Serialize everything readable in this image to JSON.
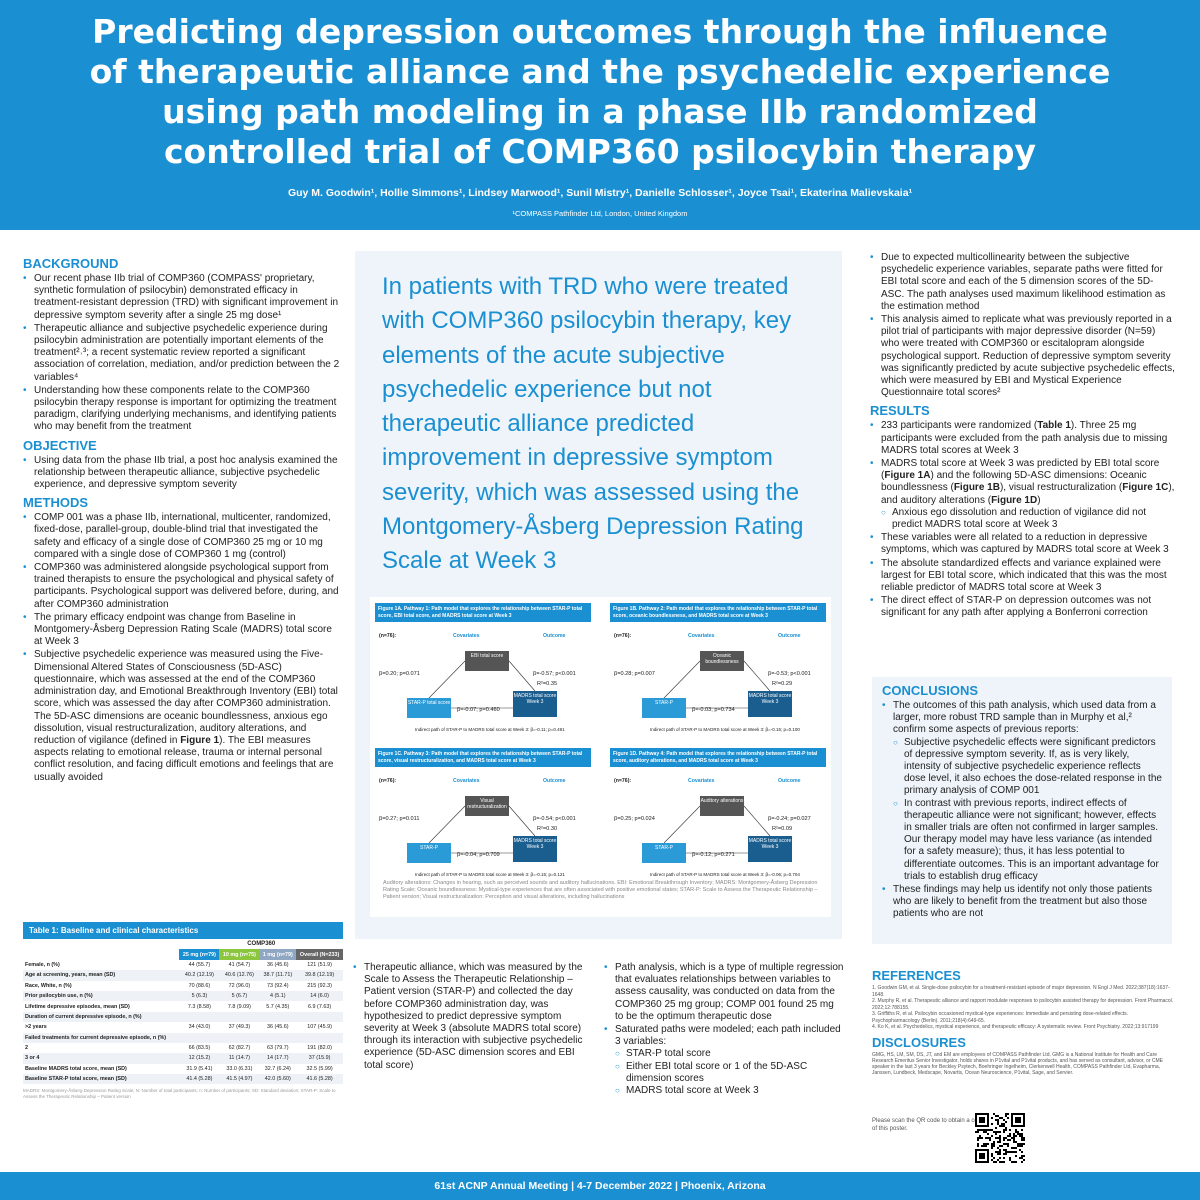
{
  "header": {
    "title_lines": [
      "Predicting depression outcomes through the influence",
      "of therapeutic alliance and the psychedelic experience",
      "using path modeling in a phase IIb randomized",
      "controlled trial of COMP360 psilocybin therapy"
    ],
    "authors": "Guy M. Goodwin¹, Hollie Simmons¹, Lindsey Marwood¹, Sunil Mistry¹, Danielle Schlosser¹, Joyce Tsai¹, Ekaterina Malievskaia¹",
    "affiliation": "¹COMPASS Pathfinder Ltd, London, United Kingdom"
  },
  "background": {
    "heading": "BACKGROUND",
    "items": [
      "Our recent phase IIb trial of COMP360 (COMPASS' proprietary, synthetic formulation of psilocybin) demonstrated efficacy in treatment-resistant depression (TRD) with significant improvement in depressive symptom severity after a single 25 mg dose¹",
      "Therapeutic alliance and subjective psychedelic experience during psilocybin administration are potentially important elements of the treatment²˒³; a recent systematic review reported a significant association of correlation, mediation, and/or prediction between the 2 variables⁴",
      "Understanding how these components relate to the COMP360 psilocybin therapy response is important for optimizing the treatment paradigm, clarifying underlying mechanisms, and identifying patients who may benefit from the treatment"
    ]
  },
  "objective": {
    "heading": "OBJECTIVE",
    "items": [
      "Using data from the phase IIb trial, a post hoc analysis examined the relationship between therapeutic alliance, subjective psychedelic experience, and depressive symptom severity"
    ]
  },
  "methods": {
    "heading": "METHODS",
    "items": [
      "COMP 001 was a phase IIb, international, multicenter, randomized, fixed-dose, parallel-group, double-blind trial that investigated the safety and efficacy of a single dose of COMP360 25 mg or 10 mg compared with a single dose of COMP360 1 mg (control)",
      "COMP360 was administered alongside psychological support from trained therapists to ensure the psychological and physical safety of participants. Psychological support was delivered before, during, and after COMP360 administration",
      "The primary efficacy endpoint was change from Baseline in Montgomery-Åsberg Depression Rating Scale (MADRS) total score at Week 3"
    ],
    "last_item_pre": "Subjective psychedelic experience was measured using the Five-Dimensional Altered States of Consciousness (5D-ASC) questionnaire, which was assessed at the end of the COMP360 administration day, and Emotional Breakthrough Inventory (EBI) total score, which was assessed the day after COMP360 administration. The 5D-ASC dimensions are oceanic boundlessness, anxious ego dissolution, visual restructuralization, auditory alterations, and reduction of vigilance (defined in ",
    "last_item_bold": "Figure 1",
    "last_item_post": "). The EBI measures aspects relating to emotional release, trauma or internal personal conflict resolution, and facing difficult emotions and feelings that are usually avoided"
  },
  "key_message": "In patients with TRD who were treated with COMP360 psilocybin therapy, key elements of the acute subjective psychedelic experience but not therapeutic alliance predicted improvement in depressive symptom severity, which was assessed using the Montgomery-Åsberg Depression Rating Scale at Week 3",
  "figures": [
    {
      "caption": "Figure 1A. Pathway 1: Path model that explores the relationship between STAR-P total score, EBI total score, and MADRS total score at Week 3",
      "n": "(n=76):",
      "covariates": "Covariates",
      "outcome": "Outcome",
      "mediator": "EBI total score",
      "star": "STAR-P total score",
      "madrs": "MADRS total score Week 3",
      "a": "β=0.20; p=0.071",
      "b": "β=-0.57; p<0.001",
      "r2": "R²=0.35",
      "c": "β=-0.07; p=0.460",
      "indirect": "Indirect path of STAR-P to MADRS total score at Week 3: β=-0.11; p=0.491"
    },
    {
      "caption": "Figure 1B. Pathway 2: Path model that explores the relationship between STAR-P total score, oceanic boundlessness, and MADRS total score at Week 3",
      "n": "(n=76):",
      "covariates": "Covariates",
      "outcome": "Outcome",
      "mediator": "Oceanic boundlessness",
      "star": "STAR-P",
      "madrs": "MADRS total score Week 3",
      "a": "β=0.28; p=0.007",
      "b": "β=-0.53; p<0.001",
      "r2": "R²=0.29",
      "c": "β=-0.03; p=0.734",
      "indirect": "Indirect path of STAR-P to MADRS total score at Week 3: β=-0.15; p=0.100"
    },
    {
      "caption": "Figure 1C. Pathway 3: Path model that explores the relationship between STAR-P total score, visual restructuralization, and MADRS total score at Week 3",
      "n": "(n=76):",
      "covariates": "Covariates",
      "outcome": "Outcome",
      "mediator": "Visual restructuralization",
      "star": "STAR-P",
      "madrs": "MADRS total score Week 3",
      "a": "β=0.27; p=0.011",
      "b": "β=-0.54; p<0.001",
      "r2": "R²=0.30",
      "c": "β=-0.04; p=0.709",
      "indirect": "Indirect path of STAR-P to MADRS total score at Week 3: β=-0.15; p=0.121"
    },
    {
      "caption": "Figure 1D. Pathway 4: Path model that explores the relationship between STAR-P total score, auditory alterations, and MADRS total score at Week 3",
      "n": "(n=76):",
      "covariates": "Covariates",
      "outcome": "Outcome",
      "mediator": "Auditory alterations",
      "star": "STAR-P",
      "madrs": "MADRS total score Week 3",
      "a": "β=0.25; p=0.024",
      "b": "β=-0.24; p=0.027",
      "r2": "R²=0.09",
      "c": "β=-0.12; p=0.271",
      "indirect": "Indirect path of STAR-P to MADRS total score at Week 3: β=-0.06; p=0.704"
    }
  ],
  "figure_footnote": "Auditory alterations: Changes in hearing, such as perceived sounds and auditory hallucinations. EBI: Emotional Breakthrough Inventory; MADRS: Montgomery-Åsberg Depression Rating Scale; Oceanic boundlessness: Mystical-type experiences that are often associated with positive emotional states; STAR-P: Scale to Assess the Therapeutic Relationship – Patient version; Visual restructuralization: Perception and visual alterations, including hallucinations",
  "mid_bottom_left": [
    "Therapeutic alliance, which was measured by the Scale to Assess the Therapeutic Relationship – Patient version (STAR-P) and collected the day before COMP360 administration day, was hypothesized to predict depressive symptom severity at Week 3 (absolute MADRS total score) through its interaction with subjective psychedelic experience (5D-ASC dimension scores and EBI total score)"
  ],
  "mid_bottom_right": {
    "items": [
      "Path analysis, which is a type of multiple regression that evaluates relationships between variables to assess causality, was conducted on data from the COMP360 25 mg group; COMP 001 found 25 mg to be the optimum therapeutic dose",
      "Saturated paths were modeled; each path included 3 variables:"
    ],
    "sub": [
      "STAR-P total score",
      "Either EBI total score or 1 of the 5D-ASC dimension scores",
      "MADRS total score at Week 3"
    ]
  },
  "right_top": [
    "Due to expected multicollinearity between the subjective psychedelic experience variables, separate paths were fitted for EBI total score and each of the 5 dimension scores of the 5D-ASC. The path analyses used maximum likelihood estimation as the estimation method",
    "This analysis aimed to replicate what was previously reported in a pilot trial of participants with major depressive disorder (N=59) who were treated with COMP360 or escitalopram alongside psychological support. Reduction of depressive symptom severity was significantly predicted by acute subjective psychedelic effects, which were measured by EBI and Mystical Experience Questionnaire total scores²"
  ],
  "results": {
    "heading": "RESULTS",
    "r1_pre": "233 participants were randomized (",
    "r1_bold": "Table 1",
    "r1_post": "). Three 25 mg participants were excluded from the path analysis due to missing MADRS total scores at Week 3",
    "r2_a": "MADRS total score at Week 3 was predicted by EBI total score (",
    "r2_b": "Figure 1A",
    "r2_c": ") and the following 5D-ASC dimensions: Oceanic boundlessness (",
    "r2_d": "Figure 1B",
    "r2_e": "), visual restructuralization (",
    "r2_f": "Figure 1C",
    "r2_g": "), and auditory alterations (",
    "r2_h": "Figure 1D",
    "r2_i": ")",
    "r2_sub": "Anxious ego dissolution and reduction of vigilance did not predict MADRS total score at Week 3",
    "rest": [
      "These variables were all related to a reduction in depressive symptoms, which was captured by MADRS total score at Week 3",
      "The absolute standardized effects and variance explained were largest for EBI total score, which indicated that this was the most reliable predictor of MADRS total score at Week 3",
      "The direct effect of STAR-P on depression outcomes was not significant for any path after applying a Bonferroni correction"
    ]
  },
  "conclusions": {
    "heading": "CONCLUSIONS",
    "lead": "The outcomes of this path analysis, which used data from a larger, more robust TRD sample than in Murphy et al,² confirm some aspects of previous reports:",
    "sub": [
      "Subjective psychedelic effects were significant predictors of depressive symptom severity. If, as is very likely, intensity of subjective psychedelic experience reflects dose level, it also echoes the dose-related response in the primary analysis of COMP 001",
      "In contrast with previous reports, indirect effects of therapeutic alliance were not significant; however, effects in smaller trials are often not confirmed in larger samples. Our therapy model may have less variance (as intended for a safety measure); thus, it has less potential to differentiate outcomes. This is an important advantage for trials to establish drug efficacy"
    ],
    "last": "These findings may help us identify not only those patients who are likely to benefit from the treatment but also those patients who are not"
  },
  "references": {
    "heading": "REFERENCES",
    "items": [
      "1. Goodwin GM, et al. Single-dose psilocybin for a treatment-resistant episode of major depression. N Engl J Med. 2022;387(18):1637-1648.",
      "2. Murphy R, et al. Therapeutic alliance and rapport modulate responses to psilocybin assisted therapy for depression. Front Pharmacol. 2022;12:788155.",
      "3. Griffiths R, et al. Psilocybin occasioned mystical-type experiences: Immediate and persisting dose-related effects. Psychopharmacology (Berlin). 2011;218(4):649-65.",
      "4. Ko K, et al. Psychedelics, mystical experience, and therapeutic efficacy: A systematic review. Front Psychiatry. 2022;13:917199"
    ]
  },
  "disclosures": {
    "heading": "DISCLOSURES",
    "text": "GMG, HS, LM, SM, DS, JT, and EM are employees of COMPASS Pathfinder Ltd. GMG is a National Institute for Health and Care Research Emeritus Senior Investigator, holds shares in P1vital and P1vital products, and has served as consultant, advisor, or CME speaker in the last 3 years for Beckley Psytech, Boehringer Ingelheim, Clerkenwell Health, COMPASS Pathfinder Ltd, Evapharma, Janssen, Lundbeck, Medscape, Novartis, Ocean Neuroscience, P1vital, Sage, and Servier."
  },
  "qr_text": "Please scan the QR code to obtain a copy of this poster.",
  "table": {
    "caption": "Table 1: Baseline and clinical characteristics",
    "group": "COMP360",
    "cols": [
      "25 mg (n=79)",
      "10 mg (n=75)",
      "1 mg (n=79)",
      "Overall (N=233)"
    ],
    "rows": [
      [
        "Female, n (%)",
        "44 (55.7)",
        "41 (54.7)",
        "36 (45.6)",
        "121 (51.9)"
      ],
      [
        "Age at screening, years, mean (SD)",
        "40.2 (12.19)",
        "40.6 (12.76)",
        "38.7 (11.71)",
        "39.8 (12.19)"
      ],
      [
        "Race, White, n (%)",
        "70 (88.6)",
        "72 (96.0)",
        "73 (92.4)",
        "215 (92.3)"
      ],
      [
        "Prior psilocybin use, n (%)",
        "5 (6.3)",
        "5 (6.7)",
        "4 (5.1)",
        "14 (6.0)"
      ],
      [
        "Lifetime depressive episodes, mean (SD)",
        "7.3 (8.58)",
        "7.8 (9.09)",
        "5.7 (4.35)",
        "6.9 (7.63)"
      ],
      [
        "Duration of current depressive episode, n (%)",
        "",
        "",
        "",
        ""
      ],
      [
        "   >2 years",
        "34 (43.0)",
        "37 (49.3)",
        "36 (45.6)",
        "107 (45.9)"
      ],
      [
        "Failed treatments for current depressive episode, n (%)",
        "",
        "",
        "",
        ""
      ],
      [
        "   2",
        "66 (83.5)",
        "62 (82.7)",
        "63 (79.7)",
        "191 (82.0)"
      ],
      [
        "   3 or 4",
        "12 (15.2)",
        "11 (14.7)",
        "14 (17.7)",
        "37 (15.9)"
      ],
      [
        "Baseline MADRS total score, mean (SD)",
        "31.9 (5.41)",
        "33.0 (6.31)",
        "32.7 (6.24)",
        "32.5 (5.99)"
      ],
      [
        "Baseline STAR-P total score, mean (SD)",
        "41.4 (5.28)",
        "41.5 (4.97)",
        "42.0 (5.60)",
        "41.6 (5.28)"
      ]
    ],
    "note": "MADRS: Montgomery-Åsberg Depression Rating Scale; N: Number of total participants; n: Number of participants; SD: Standard deviation; STAR-P: Scale to Assess the Therapeutic Relationship – Patient version"
  },
  "footer": "61st ACNP Annual Meeting | 4-7 December 2022 | Phoenix, Arizona"
}
